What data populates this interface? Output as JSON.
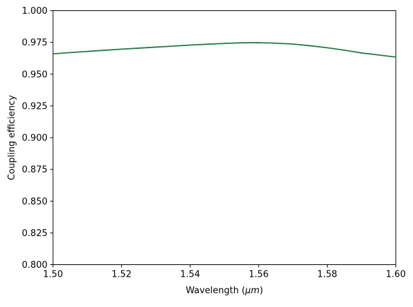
{
  "chart_data": {
    "type": "line",
    "title": "",
    "xlabel": "Wavelength (μm)",
    "xlabel_parts": {
      "prefix": "Wavelength (",
      "math": "μm",
      "suffix": ")"
    },
    "ylabel": "Coupling efficiency",
    "xlim": [
      1.5,
      1.6
    ],
    "ylim": [
      0.8,
      1.0
    ],
    "grid": false,
    "legend": null,
    "xticks": [
      1.5,
      1.52,
      1.54,
      1.56,
      1.58,
      1.6
    ],
    "xtick_labels": [
      "1.50",
      "1.52",
      "1.54",
      "1.56",
      "1.58",
      "1.60"
    ],
    "yticks": [
      0.8,
      0.825,
      0.85,
      0.875,
      0.9,
      0.925,
      0.95,
      0.975,
      1.0
    ],
    "ytick_labels": [
      "0.800",
      "0.825",
      "0.850",
      "0.875",
      "0.900",
      "0.925",
      "0.950",
      "0.975",
      "1.000"
    ],
    "series": [
      {
        "name": "coupling-efficiency",
        "color": "#227a42",
        "x": [
          1.5,
          1.505,
          1.51,
          1.515,
          1.52,
          1.525,
          1.53,
          1.535,
          1.54,
          1.545,
          1.55,
          1.555,
          1.56,
          1.565,
          1.57,
          1.575,
          1.58,
          1.585,
          1.59,
          1.595,
          1.6
        ],
        "y": [
          0.966,
          0.967,
          0.9679,
          0.9688,
          0.9697,
          0.9705,
          0.9713,
          0.9721,
          0.9729,
          0.9736,
          0.9742,
          0.9747,
          0.9748,
          0.9744,
          0.9737,
          0.9724,
          0.9708,
          0.9689,
          0.9667,
          0.9651,
          0.9635
        ]
      }
    ]
  },
  "colors": {
    "line": "#227a42",
    "axis": "#000000",
    "background": "#ffffff",
    "text": "#000000"
  }
}
